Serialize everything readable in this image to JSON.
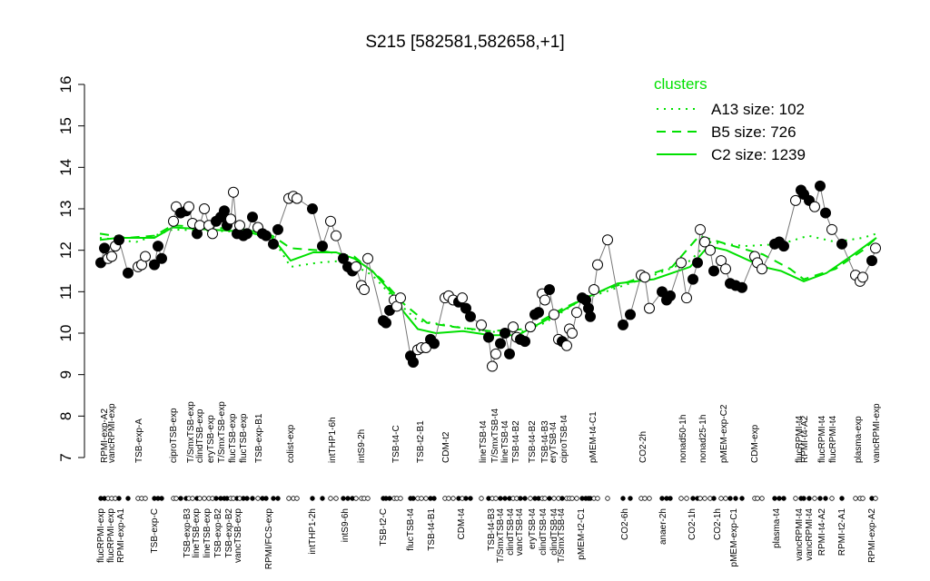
{
  "chart_data": {
    "type": "scatter",
    "title": "S215 [582581,582658,+1]",
    "ylim": [
      7,
      16
    ],
    "yticks": [
      7,
      8,
      9,
      10,
      11,
      12,
      13,
      14,
      15,
      16
    ],
    "xlim": [
      100,
      975
    ],
    "x": [
      111,
      115,
      119,
      123,
      127,
      131,
      141,
      152,
      156,
      160,
      170,
      174,
      178,
      191,
      194,
      199,
      205,
      208,
      212,
      217,
      220,
      225,
      230,
      234,
      238,
      243,
      247,
      250,
      254,
      257,
      261,
      264,
      268,
      272,
      278,
      284,
      289,
      293,
      301,
      306,
      318,
      323,
      327,
      344,
      355,
      364,
      370,
      378,
      383,
      388,
      392,
      398,
      401,
      405,
      422,
      425,
      429,
      434,
      437,
      441,
      452,
      455,
      460,
      464,
      469,
      474,
      478,
      490,
      494,
      499,
      505,
      509,
      513,
      518,
      530,
      538,
      542,
      546,
      551,
      556,
      561,
      565,
      569,
      573,
      578,
      584,
      589,
      593,
      597,
      600,
      605,
      610,
      615,
      619,
      624,
      627,
      630,
      635,
      641,
      645,
      648,
      650,
      654,
      658,
      669,
      686,
      694,
      706,
      710,
      715,
      729,
      734,
      738,
      750,
      756,
      763,
      768,
      771,
      776,
      782,
      786,
      794,
      799,
      804,
      810,
      817,
      831,
      834,
      839,
      853,
      858,
      863,
      876,
      882,
      885,
      891,
      897,
      903,
      909,
      916,
      927,
      942,
      947,
      950,
      960,
      964
    ],
    "values": [
      11.7,
      12.05,
      11.8,
      11.85,
      12.1,
      12.25,
      11.45,
      11.6,
      11.65,
      11.85,
      11.65,
      12.1,
      11.8,
      12.7,
      13.05,
      12.9,
      12.95,
      13.05,
      12.65,
      12.4,
      12.6,
      13.0,
      12.6,
      12.4,
      12.7,
      12.8,
      12.95,
      12.6,
      12.75,
      13.4,
      12.4,
      12.6,
      12.35,
      12.4,
      12.8,
      12.55,
      12.4,
      12.35,
      12.15,
      12.5,
      13.25,
      13.3,
      13.25,
      13.0,
      12.1,
      12.7,
      12.35,
      11.8,
      11.6,
      11.5,
      11.6,
      11.15,
      11.05,
      11.8,
      10.3,
      10.25,
      10.55,
      10.8,
      10.65,
      10.85,
      9.45,
      9.3,
      9.6,
      9.65,
      9.65,
      9.85,
      9.75,
      10.85,
      10.9,
      10.8,
      10.75,
      10.85,
      10.6,
      10.4,
      10.2,
      9.9,
      9.2,
      9.5,
      9.75,
      10.0,
      9.5,
      10.15,
      9.9,
      9.85,
      9.8,
      10.15,
      10.45,
      10.5,
      10.95,
      10.8,
      11.05,
      10.45,
      9.85,
      9.8,
      9.7,
      10.1,
      10.0,
      10.5,
      10.85,
      10.8,
      10.6,
      10.4,
      11.05,
      11.65,
      12.25,
      10.2,
      10.45,
      11.4,
      11.35,
      10.6,
      11.0,
      10.8,
      10.9,
      11.7,
      10.85,
      11.3,
      11.7,
      12.5,
      12.2,
      12.0,
      11.5,
      11.75,
      11.55,
      11.2,
      11.15,
      11.1,
      11.85,
      11.7,
      11.55,
      12.15,
      12.2,
      12.1,
      13.2,
      13.45,
      13.35,
      13.2,
      13.05,
      13.55,
      12.9,
      12.5,
      12.15,
      11.4,
      11.25,
      11.35,
      11.75,
      12.05
    ],
    "filled": [
      true,
      true,
      false,
      false,
      false,
      true,
      true,
      false,
      false,
      false,
      true,
      true,
      true,
      false,
      false,
      true,
      true,
      false,
      false,
      true,
      false,
      false,
      false,
      false,
      true,
      true,
      true,
      true,
      false,
      false,
      true,
      false,
      true,
      true,
      true,
      false,
      true,
      true,
      true,
      true,
      false,
      false,
      false,
      true,
      true,
      false,
      false,
      true,
      true,
      true,
      false,
      false,
      false,
      false,
      true,
      true,
      true,
      false,
      false,
      false,
      true,
      true,
      false,
      false,
      false,
      true,
      true,
      false,
      false,
      false,
      true,
      false,
      true,
      true,
      false,
      true,
      false,
      false,
      true,
      true,
      true,
      false,
      false,
      true,
      true,
      false,
      true,
      true,
      false,
      false,
      true,
      false,
      false,
      true,
      false,
      false,
      false,
      false,
      true,
      true,
      true,
      true,
      false,
      false,
      false,
      true,
      true,
      false,
      false,
      false,
      true,
      true,
      true,
      false,
      false,
      true,
      true,
      false,
      false,
      false,
      true,
      false,
      false,
      true,
      true,
      true,
      false,
      false,
      false,
      true,
      true,
      true,
      false,
      true,
      true,
      true,
      false,
      true,
      true,
      false,
      true,
      false,
      false,
      false,
      true,
      false
    ],
    "top_labels": {
      "x": [
        115,
        123,
        153,
        191,
        210,
        220,
        232,
        244,
        256,
        268,
        285,
        320,
        366,
        398,
        436,
        463,
        491,
        532,
        545,
        556,
        568,
        586,
        600,
        609,
        621,
        653,
        708,
        752,
        774,
        797,
        831,
        880,
        886,
        905,
        917,
        945,
        965
      ],
      "labels": [
        "RPMI-exp-A2",
        "vancRPMI-exp",
        "TSB-exp-A",
        "ciproTSB-exp",
        "T/SmxTSB-exp",
        "clindTSB-exp",
        "eryTSB-exp",
        "T/SmxTSB-exp",
        "flucTSB-exp",
        "flucTSB-exp",
        "TSB-exp-B1",
        "colist-exp",
        "intTHP1-6h",
        "intS9-2h",
        "TSB-t4-C",
        "TSB-t2-B1",
        "CDM-t2",
        "lineTSB-t4",
        "T/SmxTSB-t4",
        "lineTSB-t4",
        "TSB-t4-B2",
        "TSB-t4-B2",
        "TSB-t4-B3",
        "eryTSB-t4",
        "ciproTSB-t4",
        "pMEM-t4-C1",
        "CO2-2h",
        "nonad50-1h",
        "nonad25-1h",
        "pMEM-exp-C2",
        "CDM-exp",
        "flucRPMI-t4",
        "RPMI-t4-A2",
        "flucRPMI-t4",
        "flucRPMI-t4",
        "plasma-exp",
        "vancRPMI-exp"
      ]
    },
    "bottom_labels": {
      "x": [
        111,
        122,
        133,
        170,
        206,
        216,
        228,
        240,
        252,
        262,
        296,
        344,
        380,
        422,
        452,
        475,
        508,
        541,
        551,
        562,
        572,
        586,
        598,
        610,
        618,
        640,
        688,
        730,
        762,
        790,
        808,
        855,
        880,
        891,
        905,
        927,
        960
      ],
      "labels": [
        "flucRPMI-exp",
        "flucRPMI-exp",
        "RPMI-exp-A1",
        "TSB-exp-C",
        "TSB-exp-B3",
        "lineTSB-exp",
        "lineTSB-exp",
        "TSB-exp-B2",
        "TSB-exp-B2",
        "vancTSB-exp",
        "RPMI/FCS-exp",
        "intTHP1-2h",
        "intS9-6h",
        "TSB-t2-C",
        "flucTSB-t4",
        "TSB-t4-B1",
        "CDM-t4",
        "TSB-t4-B3",
        "T/SmxTSB-t4",
        "clindTSB-t4",
        "vancTSB-t4",
        "eryTSB-t4",
        "clindTSB-t4",
        "clindTSB-t4",
        "T/SmxTSB-t4",
        "pMEM-t2-C1",
        "CO2-6h",
        "anaer-2h",
        "CO2-1h",
        "CO2-1h",
        "pMEM-exp-C1",
        "plasma-t4",
        "vancRPMI-t4",
        "vancRPMI-t4",
        "RPMI-t4-A2",
        "RPMI-t2-A1",
        "RPMI-exp-A2"
      ]
    },
    "legend": {
      "title": "clusters",
      "position": "top-right"
    },
    "series": [
      {
        "name": "A13 size: 102",
        "color": "#00e000",
        "dash": "dotted",
        "x": [
          110,
          150,
          190,
          260,
          300,
          320,
          350,
          380,
          410,
          440,
          460,
          490,
          530,
          570,
          600,
          640,
          680,
          720,
          760,
          780,
          820,
          860,
          890,
          920,
          950,
          965
        ],
        "values": [
          12.3,
          12.2,
          12.5,
          12.45,
          12.3,
          11.6,
          11.7,
          11.75,
          11.4,
          10.7,
          10.3,
          10.2,
          10.05,
          10.0,
          10.25,
          10.8,
          11.1,
          11.4,
          11.75,
          12.2,
          12.1,
          12.15,
          12.35,
          12.2,
          12.3,
          12.4
        ]
      },
      {
        "name": "B5 size: 726",
        "color": "#00e000",
        "dash": "dashed",
        "x": [
          110,
          140,
          170,
          190,
          270,
          300,
          320,
          350,
          390,
          420,
          445,
          470,
          500,
          540,
          580,
          620,
          660,
          700,
          740,
          770,
          800,
          840,
          870,
          885,
          920,
          950,
          965
        ],
        "values": [
          12.4,
          12.3,
          12.35,
          12.6,
          12.5,
          12.35,
          12.05,
          12.0,
          11.85,
          11.3,
          10.7,
          10.25,
          10.15,
          10.05,
          10.1,
          10.6,
          11.0,
          11.3,
          11.6,
          12.35,
          12.15,
          11.9,
          11.55,
          11.3,
          11.55,
          12.0,
          12.3
        ]
      },
      {
        "name": "C2 size: 1239",
        "color": "#00e000",
        "dash": "solid",
        "x": [
          110,
          130,
          170,
          190,
          230,
          270,
          300,
          320,
          345,
          370,
          390,
          410,
          430,
          445,
          460,
          480,
          510,
          540,
          570,
          600,
          640,
          680,
          720,
          760,
          780,
          800,
          840,
          860,
          885,
          910,
          940,
          965
        ],
        "values": [
          12.25,
          12.3,
          12.3,
          12.55,
          12.5,
          12.45,
          12.3,
          11.75,
          11.95,
          11.95,
          11.8,
          11.5,
          11.0,
          10.5,
          10.1,
          10.0,
          10.05,
          9.95,
          9.95,
          10.3,
          10.8,
          11.2,
          11.3,
          11.6,
          12.1,
          12.0,
          11.6,
          11.5,
          11.25,
          11.45,
          11.9,
          12.3
        ]
      }
    ]
  }
}
